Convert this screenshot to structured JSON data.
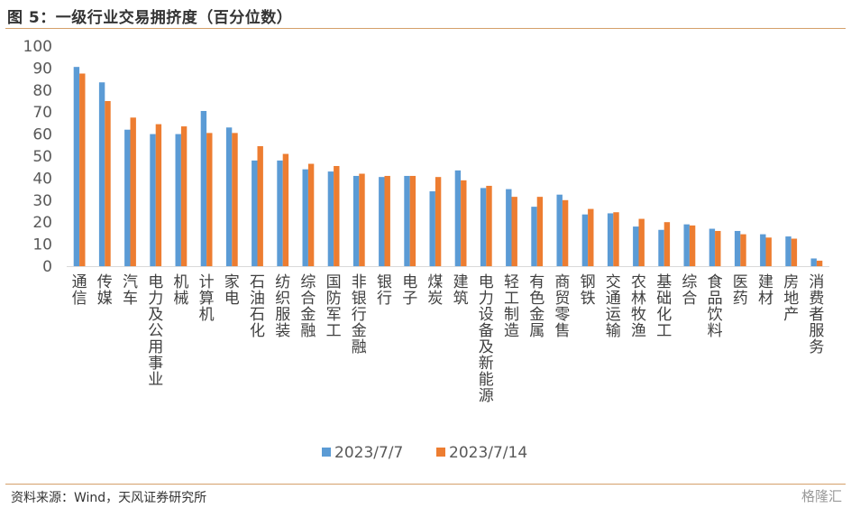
{
  "header": {
    "title": "图 5：一级行业交易拥挤度（百分位数）"
  },
  "footer": {
    "source": "资料来源：Wind，天风证券研究所",
    "watermark": "格隆汇"
  },
  "chart_data": {
    "type": "bar",
    "title": "图 5：一级行业交易拥挤度（百分位数）",
    "xlabel": "",
    "ylabel": "",
    "ylim": [
      0,
      100
    ],
    "yticks": [
      0,
      10,
      20,
      30,
      40,
      50,
      60,
      70,
      80,
      90,
      100
    ],
    "grid": false,
    "legend": "bottom",
    "categories": [
      "通信",
      "传媒",
      "汽车",
      "电力及公用事业",
      "机械",
      "计算机",
      "家电",
      "石油石化",
      "纺织服装",
      "综合金融",
      "国防军工",
      "非银行金融",
      "银行",
      "电子",
      "煤炭",
      "建筑",
      "电力设备及新能源",
      "轻工制造",
      "有色金属",
      "商贸零售",
      "钢铁",
      "交通运输",
      "农林牧渔",
      "基础化工",
      "综合",
      "食品饮料",
      "医药",
      "建材",
      "房地产",
      "消费者服务"
    ],
    "series": [
      {
        "name": "2023/7/7",
        "color": "#5b9bd5",
        "values": [
          90.5,
          83.5,
          62,
          60,
          60,
          70.5,
          63,
          48,
          48,
          44,
          43,
          41,
          40.5,
          41,
          34,
          43.5,
          35.5,
          35,
          27,
          32.5,
          23.5,
          24,
          18,
          16.5,
          19,
          17,
          16,
          14.5,
          13.5,
          3.5
        ]
      },
      {
        "name": "2023/7/14",
        "color": "#ed7d31",
        "values": [
          87.5,
          75,
          67.5,
          64.5,
          63.5,
          60.5,
          60.5,
          54.5,
          51,
          46.5,
          45.5,
          42,
          41,
          41,
          40.5,
          39,
          36.5,
          31.5,
          31.5,
          30,
          26,
          24.5,
          21.5,
          20,
          18.5,
          16,
          14.5,
          13,
          12.5,
          2.5
        ]
      }
    ]
  }
}
